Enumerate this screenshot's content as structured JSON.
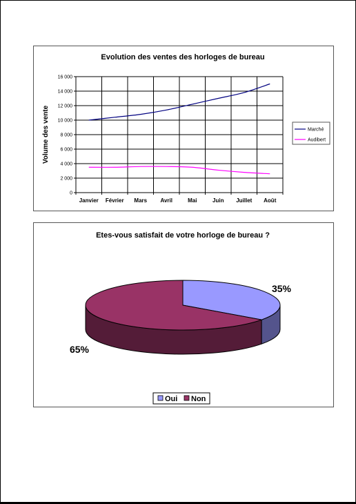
{
  "chart_data": [
    {
      "type": "line",
      "title": "Evolution des ventes des horloges de bureau",
      "xlabel": "",
      "ylabel": "Volume des vente",
      "categories": [
        "Janvier",
        "Février",
        "Mars",
        "Avril",
        "Mai",
        "Juin",
        "Juillet",
        "Août"
      ],
      "yticks": [
        "0",
        "2 000",
        "4 000",
        "6 000",
        "8 000",
        "10 000",
        "12 000",
        "14 000",
        "16 000"
      ],
      "ylim": [
        0,
        16000
      ],
      "grid": true,
      "legend": "right",
      "series": [
        {
          "name": "Marché",
          "color": "#000080",
          "values": [
            10000,
            10400,
            10800,
            11400,
            12200,
            13000,
            13800,
            15000
          ]
        },
        {
          "name": "Audibert",
          "color": "#ff00ff",
          "values": [
            3500,
            3500,
            3600,
            3600,
            3500,
            3100,
            2800,
            2600
          ]
        }
      ]
    },
    {
      "type": "pie",
      "title": "Etes-vous satisfait de votre horloge de bureau ?",
      "legend": "bottom",
      "categories": [
        "Oui",
        "Non"
      ],
      "values": [
        35,
        65
      ],
      "labels": [
        "35%",
        "65%"
      ],
      "colors": [
        "#9999ff",
        "#993366"
      ]
    }
  ]
}
